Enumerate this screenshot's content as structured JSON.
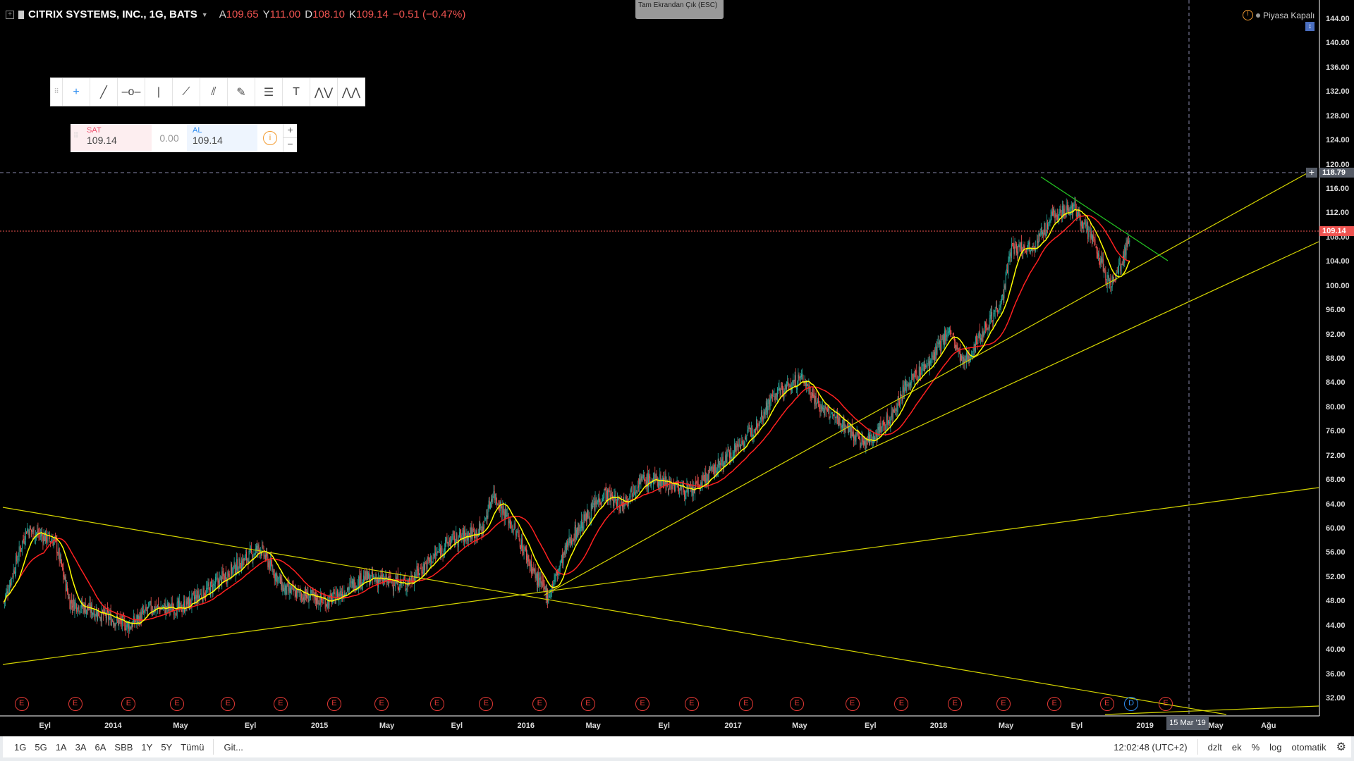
{
  "header": {
    "symbol": "CITRIX SYSTEMS, INC., 1G, BATS",
    "open_l": "A",
    "open": "109.65",
    "high_l": "Y",
    "high": "111.00",
    "low_l": "D",
    "low": "108.10",
    "close_l": "K",
    "close": "109.14",
    "change": "−0.51 (−0.47%)"
  },
  "fullscreen_tip": "Tam Ekrandan Çık (ESC)",
  "market_status": "Piyasa Kapalı",
  "trade": {
    "sell_label": "SAT",
    "sell": "109.14",
    "spread": "0.00",
    "buy_label": "AL",
    "buy": "109.14",
    "plus": "+",
    "minus": "−"
  },
  "tools": [
    "crosshair-icon",
    "trend-line-icon",
    "horizontal-ray-icon",
    "vertical-line-icon",
    "ray-icon",
    "parallel-channel-icon",
    "brush-icon",
    "fib-retracement-icon",
    "text-icon",
    "elliott-wave-icon",
    "abc-pattern-icon"
  ],
  "price_axis": {
    "ticks": [
      "144.00",
      "140.00",
      "136.00",
      "132.00",
      "128.00",
      "124.00",
      "120.00",
      "116.00",
      "112.00",
      "108.00",
      "104.00",
      "100.00",
      "96.00",
      "92.00",
      "88.00",
      "84.00",
      "80.00",
      "76.00",
      "72.00",
      "68.00",
      "64.00",
      "60.00",
      "56.00",
      "52.00",
      "48.00",
      "44.00",
      "40.00",
      "36.00",
      "32.00"
    ],
    "crosshair_price": "118.79",
    "last_price": "109.14"
  },
  "time_axis": {
    "labels": [
      "Eyl",
      "2014",
      "May",
      "Eyl",
      "2015",
      "May",
      "Eyl",
      "2016",
      "May",
      "Eyl",
      "2017",
      "May",
      "Eyl",
      "2018",
      "May",
      "Eyl",
      "2019",
      "May",
      "Ağu"
    ],
    "crosshair_date": "15 Mar '19"
  },
  "events": [
    "E",
    "E",
    "E",
    "E",
    "E",
    "E",
    "E",
    "E",
    "E",
    "E",
    "E",
    "E",
    "E",
    "E",
    "E",
    "E",
    "E",
    "E",
    "E",
    "E",
    "E",
    "E",
    "D",
    "E"
  ],
  "bottom": {
    "ranges": [
      "1G",
      "5G",
      "1A",
      "3A",
      "6A",
      "SBB",
      "1Y",
      "5Y",
      "Tümü"
    ],
    "goto": "Git...",
    "time": "12:02:48 (UTC+2)",
    "opts": [
      "dzlt",
      "ek",
      "%",
      "log",
      "otomatik"
    ]
  },
  "colors": {
    "up": "#26a69a",
    "down": "#ef5350",
    "ma_fast": "#ffff00",
    "ma_slow": "#ff2020",
    "trend": "#d4d400",
    "green_line": "#22c022"
  },
  "price_path": [
    [
      2013.47,
      48
    ],
    [
      2013.58,
      60
    ],
    [
      2013.72,
      58
    ],
    [
      2013.79,
      48
    ],
    [
      2013.87,
      47
    ],
    [
      2014.08,
      44
    ],
    [
      2014.18,
      47
    ],
    [
      2014.33,
      47
    ],
    [
      2014.46,
      50
    ],
    [
      2014.71,
      57
    ],
    [
      2014.83,
      50
    ],
    [
      2015.04,
      48
    ],
    [
      2015.21,
      52
    ],
    [
      2015.42,
      51
    ],
    [
      2015.63,
      58
    ],
    [
      2015.79,
      60
    ],
    [
      2015.84,
      66
    ],
    [
      2015.96,
      59
    ],
    [
      2016.05,
      52
    ],
    [
      2016.11,
      49
    ],
    [
      2016.21,
      58
    ],
    [
      2016.38,
      66
    ],
    [
      2016.46,
      64
    ],
    [
      2016.55,
      68
    ],
    [
      2016.67,
      68
    ],
    [
      2016.8,
      66
    ],
    [
      2016.92,
      70
    ],
    [
      2017.09,
      76
    ],
    [
      2017.2,
      82
    ],
    [
      2017.34,
      85
    ],
    [
      2017.43,
      80
    ],
    [
      2017.55,
      77
    ],
    [
      2017.64,
      74
    ],
    [
      2017.76,
      78
    ],
    [
      2017.85,
      84
    ],
    [
      2017.97,
      88
    ],
    [
      2018.05,
      93
    ],
    [
      2018.12,
      87
    ],
    [
      2018.22,
      93
    ],
    [
      2018.31,
      98
    ],
    [
      2018.35,
      106
    ],
    [
      2018.47,
      107
    ],
    [
      2018.56,
      112
    ],
    [
      2018.66,
      113
    ],
    [
      2018.74,
      108
    ],
    [
      2018.79,
      104
    ],
    [
      2018.83,
      100
    ],
    [
      2018.89,
      104
    ],
    [
      2018.93,
      109.14
    ]
  ]
}
